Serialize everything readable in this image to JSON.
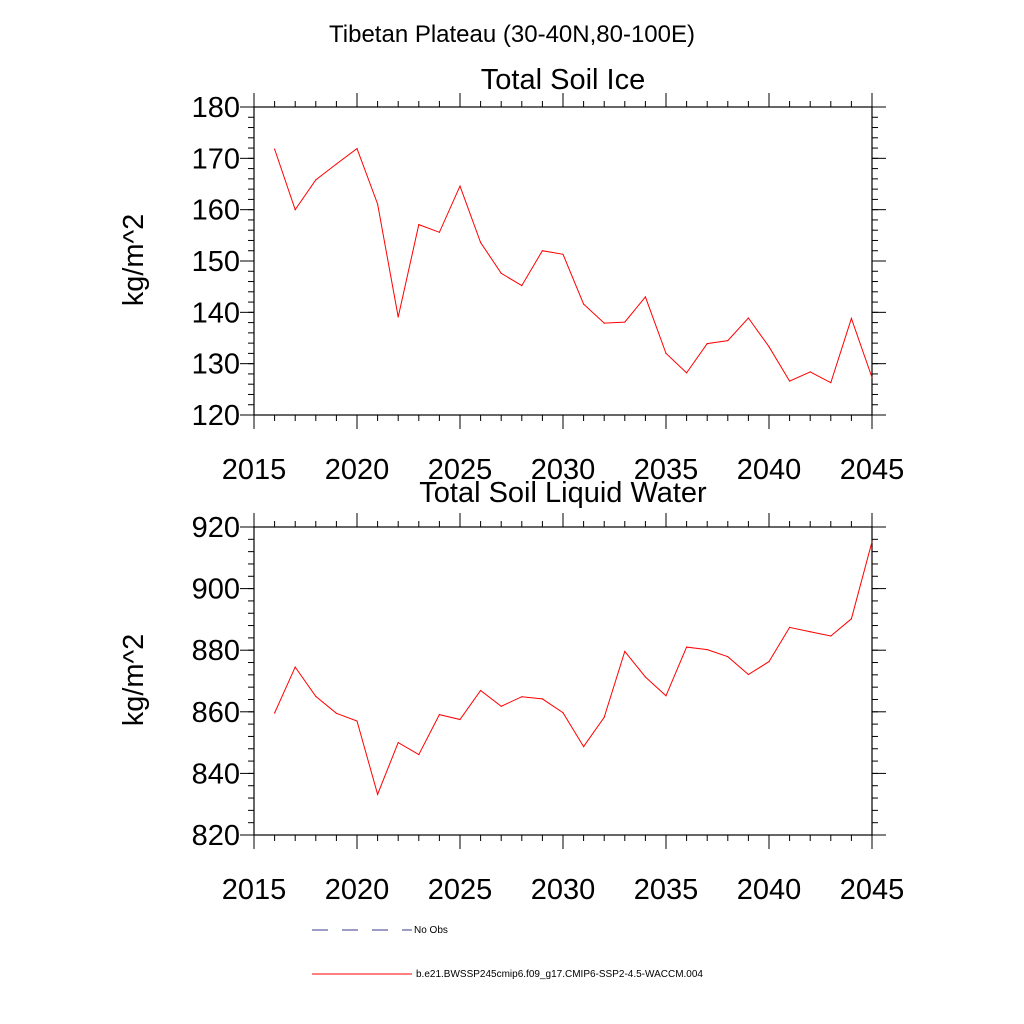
{
  "figure_title": "Tibetan Plateau (30-40N,80-100E)",
  "legend": {
    "obs_label": "No Obs",
    "obs_color": "#3a3a8c",
    "model_label": "b.e21.BWSSP245cmip6.f09_g17.CMIP6-SSP2-4.5-WACCM.004",
    "model_color": "#ff0000"
  },
  "chart_data": [
    {
      "type": "line",
      "title": "Total Soil Ice",
      "xlabel": "",
      "ylabel": "kg/m^2",
      "xlim": [
        2015,
        2045
      ],
      "ylim": [
        120,
        180
      ],
      "x_ticks": [
        2015,
        2020,
        2025,
        2030,
        2035,
        2040,
        2045
      ],
      "y_ticks": [
        120,
        130,
        140,
        150,
        160,
        170,
        180
      ],
      "grid": false,
      "series": [
        {
          "name": "b.e21.BWSSP245cmip6.f09_g17.CMIP6-SSP2-4.5-WACCM.004",
          "color": "#ff0000",
          "x": [
            2016,
            2017,
            2018,
            2019,
            2020,
            2021,
            2022,
            2023,
            2024,
            2025,
            2026,
            2027,
            2028,
            2029,
            2030,
            2031,
            2032,
            2033,
            2034,
            2035,
            2036,
            2037,
            2038,
            2039,
            2040,
            2041,
            2042,
            2043,
            2044,
            2045
          ],
          "y": [
            171.8,
            160.0,
            165.8,
            168.9,
            171.9,
            161.1,
            139.1,
            157.1,
            155.6,
            164.6,
            153.6,
            147.6,
            145.2,
            152.0,
            151.3,
            141.6,
            137.9,
            138.1,
            143.0,
            132.0,
            128.2,
            133.9,
            134.5,
            138.9,
            133.3,
            126.6,
            128.4,
            126.3,
            138.8,
            127.3
          ]
        }
      ]
    },
    {
      "type": "line",
      "title": "Total Soil Liquid Water",
      "xlabel": "",
      "ylabel": "kg/m^2",
      "xlim": [
        2015,
        2045
      ],
      "ylim": [
        820,
        920
      ],
      "x_ticks": [
        2015,
        2020,
        2025,
        2030,
        2035,
        2040,
        2045
      ],
      "y_ticks": [
        820,
        840,
        860,
        880,
        900,
        920
      ],
      "grid": false,
      "series": [
        {
          "name": "b.e21.BWSSP245cmip6.f09_g17.CMIP6-SSP2-4.5-WACCM.004",
          "color": "#ff0000",
          "x": [
            2016,
            2017,
            2018,
            2019,
            2020,
            2021,
            2022,
            2023,
            2024,
            2025,
            2026,
            2027,
            2028,
            2029,
            2030,
            2031,
            2032,
            2033,
            2034,
            2035,
            2036,
            2037,
            2038,
            2039,
            2040,
            2041,
            2042,
            2043,
            2044,
            2045
          ],
          "y": [
            859.6,
            874.5,
            865.0,
            859.5,
            857.0,
            833.2,
            850.0,
            846.1,
            859.1,
            857.5,
            866.9,
            861.8,
            864.9,
            864.2,
            859.7,
            848.7,
            858.2,
            879.6,
            871.3,
            865.2,
            881.0,
            880.2,
            877.9,
            872.1,
            876.3,
            887.4,
            886.0,
            884.6,
            890.2,
            915.2
          ]
        }
      ]
    }
  ]
}
